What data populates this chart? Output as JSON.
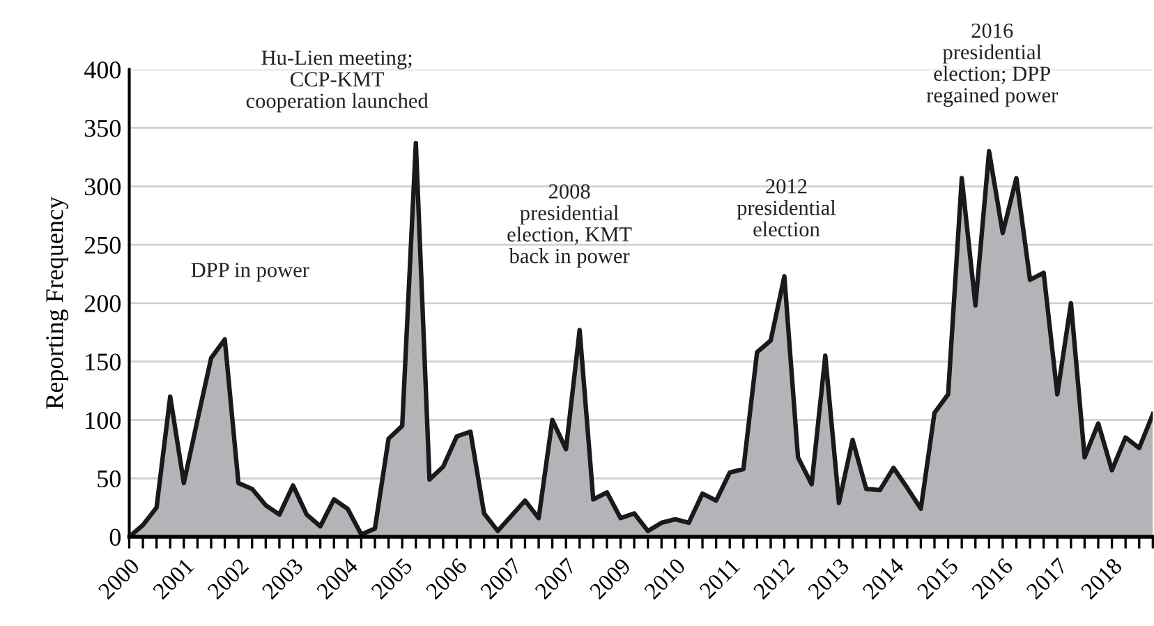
{
  "chart_data": {
    "type": "area",
    "ylabel": "Reporting Frequency",
    "categories": [
      "2000",
      null,
      null,
      null,
      "2001",
      null,
      null,
      null,
      "2002",
      null,
      null,
      null,
      "2003",
      null,
      null,
      null,
      "2004",
      null,
      null,
      null,
      "2005",
      null,
      null,
      null,
      "2006",
      null,
      null,
      null,
      "2007",
      null,
      null,
      null,
      "2007",
      null,
      null,
      null,
      "2009",
      null,
      null,
      null,
      "2010",
      null,
      null,
      null,
      "2011",
      null,
      null,
      null,
      "2012",
      null,
      null,
      null,
      "2013",
      null,
      null,
      null,
      "2014",
      null,
      null,
      null,
      "2015",
      null,
      null,
      null,
      "2016",
      null,
      null,
      null,
      "2017",
      null,
      null,
      null,
      "2018",
      null,
      null,
      null
    ],
    "series": [
      {
        "color": "#b3b4b8",
        "values": [
          0,
          10,
          25,
          120,
          46,
          100,
          153,
          169,
          46,
          41,
          27,
          19,
          44,
          19,
          9,
          32,
          24,
          2,
          7,
          84,
          95,
          337,
          49,
          60,
          86,
          90,
          20,
          5,
          18,
          31,
          16,
          100,
          75,
          177,
          32,
          38,
          16,
          20,
          5,
          12,
          15,
          12,
          37,
          31,
          55,
          58,
          158,
          168,
          223,
          68,
          45,
          155,
          29,
          83,
          41,
          40,
          59,
          42,
          24,
          106,
          122,
          307,
          198,
          330,
          260,
          307,
          220,
          226,
          122,
          200,
          68,
          97,
          57,
          85,
          76,
          105
        ]
      }
    ],
    "ylim": [
      0,
      400
    ],
    "yticks": [
      0,
      50,
      100,
      150,
      200,
      250,
      300,
      350,
      400
    ],
    "grid": "y",
    "annotations": [
      "DPP in power",
      "Hu-Lien meeting;\nCCP-KMT\ncooperation launched",
      "2008\npresidential\nelection, KMT\nback in power",
      "2012\npresidential\nelection",
      "2016\npresidential\nelection; DPP\nregained power"
    ]
  }
}
